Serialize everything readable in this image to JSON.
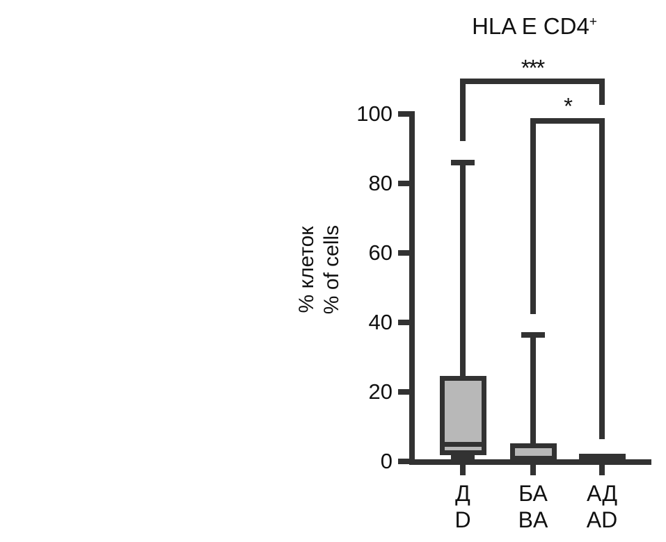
{
  "title": {
    "text": "HLA E CD4+",
    "base": "HLA E CD4",
    "superscript": "+"
  },
  "colors": {
    "line": "#323232",
    "box_fill": "#b8b8b8",
    "background": "#ffffff",
    "text": "#111111"
  },
  "chart_data": {
    "type": "box",
    "title": "HLA E CD4+",
    "ylabel_lines": [
      "% клеток",
      "% of cells"
    ],
    "xlabel": "",
    "ylim": [
      0,
      100
    ],
    "yticks": [
      0,
      20,
      40,
      60,
      80,
      100
    ],
    "grid": false,
    "legend": false,
    "categories": [
      {
        "label_line1": "Д",
        "label_line2": "D"
      },
      {
        "label_line1": "БА",
        "label_line2": "BA"
      },
      {
        "label_line1": "АД",
        "label_line2": "AD"
      }
    ],
    "series": [
      {
        "name": "Д / D",
        "min": 1,
        "q1": 2.5,
        "median": 5,
        "q3": 24,
        "max": 86
      },
      {
        "name": "БА / BA",
        "min": 0,
        "q1": 0.5,
        "median": 1,
        "q3": 4.5,
        "max": 36.5
      },
      {
        "name": "АД / AD",
        "min": 0,
        "q1": 0,
        "median": 0.5,
        "q3": 1.5,
        "max": 1.5
      }
    ],
    "significance": [
      {
        "group_a": "Д/D",
        "group_b": "АД/AD",
        "label": "***"
      },
      {
        "group_a": "БА/BA",
        "group_b": "АД/AD",
        "label": "*"
      }
    ]
  }
}
